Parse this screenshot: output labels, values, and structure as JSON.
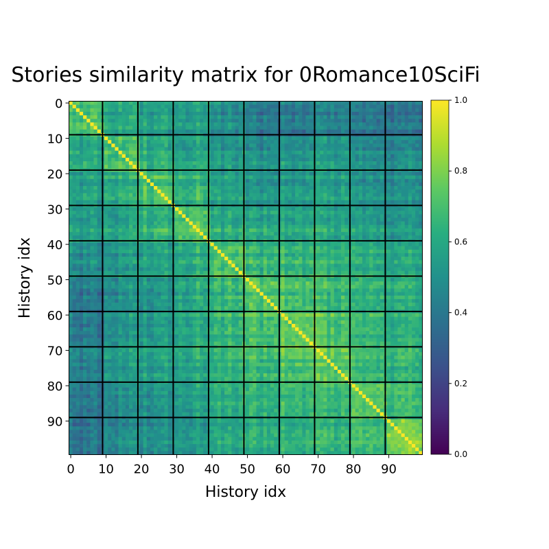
{
  "chart_data": {
    "type": "heatmap",
    "title": "Stories similarity matrix for 0Romance10SciFi",
    "xlabel": "History idx",
    "ylabel": "History idx",
    "x_ticks": [
      "0",
      "10",
      "20",
      "30",
      "40",
      "50",
      "60",
      "70",
      "80",
      "90"
    ],
    "y_ticks": [
      "0",
      "10",
      "20",
      "30",
      "40",
      "50",
      "60",
      "70",
      "80",
      "90"
    ],
    "size": 100,
    "block_size": 10,
    "diagonal_value": 1.0,
    "block_boundaries_shown": true,
    "colormap": "viridis",
    "colorbar": {
      "range": [
        0.0,
        1.0
      ],
      "ticks": [
        "0.0",
        "0.2",
        "0.4",
        "0.6",
        "0.8",
        "1.0"
      ]
    },
    "approx_block_mean_similarity": [
      [
        0.72,
        0.6,
        0.57,
        0.57,
        0.5,
        0.42,
        0.42,
        0.44,
        0.4,
        0.38
      ],
      [
        0.6,
        0.7,
        0.62,
        0.58,
        0.54,
        0.5,
        0.52,
        0.53,
        0.48,
        0.46
      ],
      [
        0.57,
        0.62,
        0.7,
        0.64,
        0.58,
        0.52,
        0.54,
        0.55,
        0.5,
        0.48
      ],
      [
        0.57,
        0.58,
        0.64,
        0.74,
        0.62,
        0.6,
        0.6,
        0.58,
        0.56,
        0.52
      ],
      [
        0.5,
        0.54,
        0.58,
        0.62,
        0.72,
        0.66,
        0.66,
        0.64,
        0.62,
        0.58
      ],
      [
        0.42,
        0.5,
        0.52,
        0.6,
        0.66,
        0.72,
        0.7,
        0.66,
        0.64,
        0.6
      ],
      [
        0.42,
        0.52,
        0.54,
        0.6,
        0.66,
        0.7,
        0.76,
        0.7,
        0.66,
        0.62
      ],
      [
        0.44,
        0.53,
        0.55,
        0.58,
        0.64,
        0.66,
        0.7,
        0.72,
        0.66,
        0.62
      ],
      [
        0.4,
        0.48,
        0.5,
        0.56,
        0.62,
        0.64,
        0.66,
        0.66,
        0.74,
        0.66
      ],
      [
        0.38,
        0.46,
        0.48,
        0.52,
        0.58,
        0.6,
        0.62,
        0.62,
        0.66,
        0.78
      ]
    ]
  }
}
